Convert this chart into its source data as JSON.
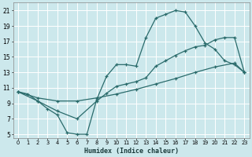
{
  "xlabel": "Humidex (Indice chaleur)",
  "bg_color": "#cce8ec",
  "grid_color": "#ffffff",
  "line_color": "#2a6b6b",
  "xlim": [
    -0.5,
    23.5
  ],
  "ylim": [
    4.5,
    22
  ],
  "xticks": [
    0,
    1,
    2,
    3,
    4,
    5,
    6,
    7,
    8,
    9,
    10,
    11,
    12,
    13,
    14,
    15,
    16,
    17,
    18,
    19,
    20,
    21,
    22,
    23
  ],
  "yticks": [
    5,
    7,
    9,
    11,
    13,
    15,
    17,
    19,
    21
  ],
  "line1_x": [
    0,
    1,
    2,
    3,
    4,
    5,
    6,
    7,
    8,
    9,
    10,
    11,
    12,
    13,
    14,
    15,
    16,
    17,
    18,
    19,
    20,
    21,
    22,
    23
  ],
  "line1_y": [
    10.5,
    10.2,
    9.3,
    8.3,
    7.5,
    5.2,
    5.0,
    5.0,
    9.5,
    12.5,
    14.0,
    14.0,
    13.8,
    17.5,
    20.0,
    20.5,
    21.0,
    20.8,
    19.0,
    16.8,
    16.0,
    14.5,
    14.0,
    13.0
  ],
  "line2_x": [
    0,
    2,
    4,
    6,
    8,
    9,
    10,
    11,
    12,
    13,
    14,
    15,
    16,
    17,
    18,
    19,
    20,
    21,
    22,
    23
  ],
  "line2_y": [
    10.5,
    9.3,
    8.0,
    7.0,
    9.3,
    10.3,
    11.2,
    11.5,
    11.8,
    12.3,
    13.8,
    14.5,
    15.2,
    15.8,
    16.3,
    16.5,
    17.2,
    17.5,
    17.5,
    13.0
  ],
  "line3_x": [
    0,
    2,
    4,
    6,
    8,
    10,
    12,
    14,
    16,
    18,
    20,
    22,
    23
  ],
  "line3_y": [
    10.5,
    9.7,
    9.3,
    9.3,
    9.7,
    10.2,
    10.8,
    11.5,
    12.2,
    13.0,
    13.7,
    14.2,
    13.0
  ]
}
